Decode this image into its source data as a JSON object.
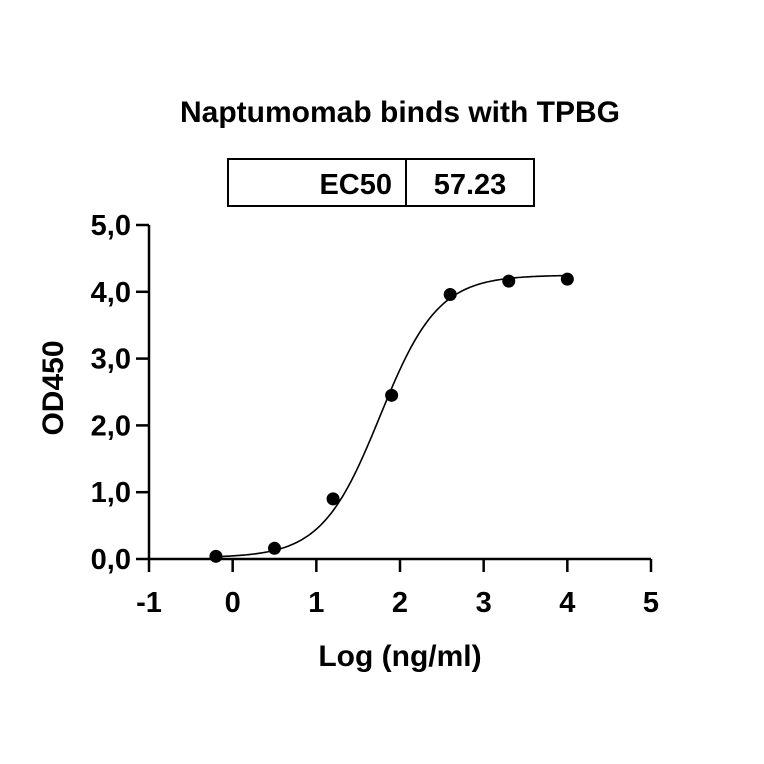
{
  "chart_data": {
    "type": "scatter",
    "title": "Naptumomab binds with TPBG",
    "xlabel": "Log (ng/ml)",
    "ylabel": "OD450",
    "xlim": [
      -1,
      5
    ],
    "ylim": [
      0,
      5
    ],
    "x_ticks": [
      "-1",
      "0",
      "1",
      "2",
      "3",
      "4",
      "5"
    ],
    "y_ticks": [
      "0,0",
      "1,0",
      "2,0",
      "3,0",
      "4,0",
      "5,0"
    ],
    "grid": false,
    "legend": "none",
    "ec50_table": {
      "label": "EC50",
      "value": "57.23"
    },
    "series": [
      {
        "x": [
          -0.2,
          0.5,
          1.2,
          1.9,
          2.6,
          3.3,
          4.0
        ],
        "y": [
          0.04,
          0.16,
          0.9,
          2.45,
          3.96,
          4.16,
          4.19
        ]
      }
    ],
    "fit": {
      "model": "4PL",
      "bottom": 0.02,
      "top": 4.25,
      "logEC50": 1.76,
      "hill": 1.25,
      "x_range": [
        -0.2,
        4.0
      ]
    },
    "colors": {
      "points": "#000000",
      "curve": "#000000",
      "axes": "#000000"
    }
  }
}
